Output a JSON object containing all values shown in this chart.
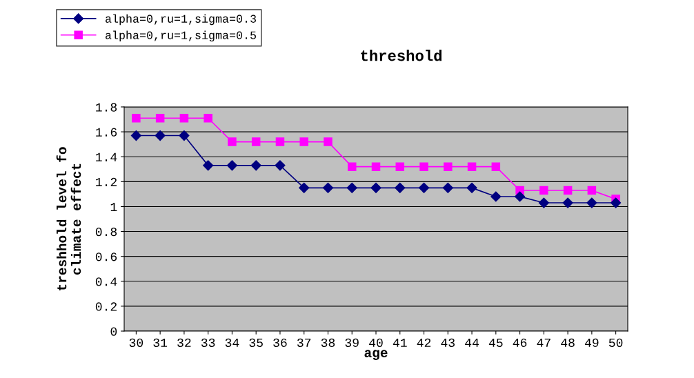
{
  "chart_data": {
    "type": "line",
    "title": "threshold",
    "xlabel": "age",
    "ylabel": "treshhold level fo\nclimate effect",
    "categories": [
      "30",
      "31",
      "32",
      "33",
      "34",
      "35",
      "36",
      "37",
      "38",
      "39",
      "40",
      "41",
      "42",
      "43",
      "44",
      "45",
      "46",
      "47",
      "48",
      "49",
      "50"
    ],
    "series": [
      {
        "name": "alpha=0,ru=1,sigma=0.3",
        "color": "#000080",
        "marker": "diamond",
        "values": [
          1.57,
          1.57,
          1.57,
          1.33,
          1.33,
          1.33,
          1.33,
          1.15,
          1.15,
          1.15,
          1.15,
          1.15,
          1.15,
          1.15,
          1.15,
          1.08,
          1.08,
          1.03,
          1.03,
          1.03,
          1.03
        ]
      },
      {
        "name": "alpha=0,ru=1,sigma=0.5",
        "color": "#ff00ff",
        "marker": "square",
        "values": [
          1.71,
          1.71,
          1.71,
          1.71,
          1.52,
          1.52,
          1.52,
          1.52,
          1.52,
          1.32,
          1.32,
          1.32,
          1.32,
          1.32,
          1.32,
          1.32,
          1.13,
          1.13,
          1.13,
          1.13,
          1.06
        ]
      }
    ],
    "ylim": [
      0,
      1.8
    ],
    "yticks": [
      0,
      0.2,
      0.4,
      0.6,
      0.8,
      1,
      1.2,
      1.4,
      1.6,
      1.8
    ],
    "grid": "y",
    "legend": "top left",
    "line_style": "solid"
  }
}
